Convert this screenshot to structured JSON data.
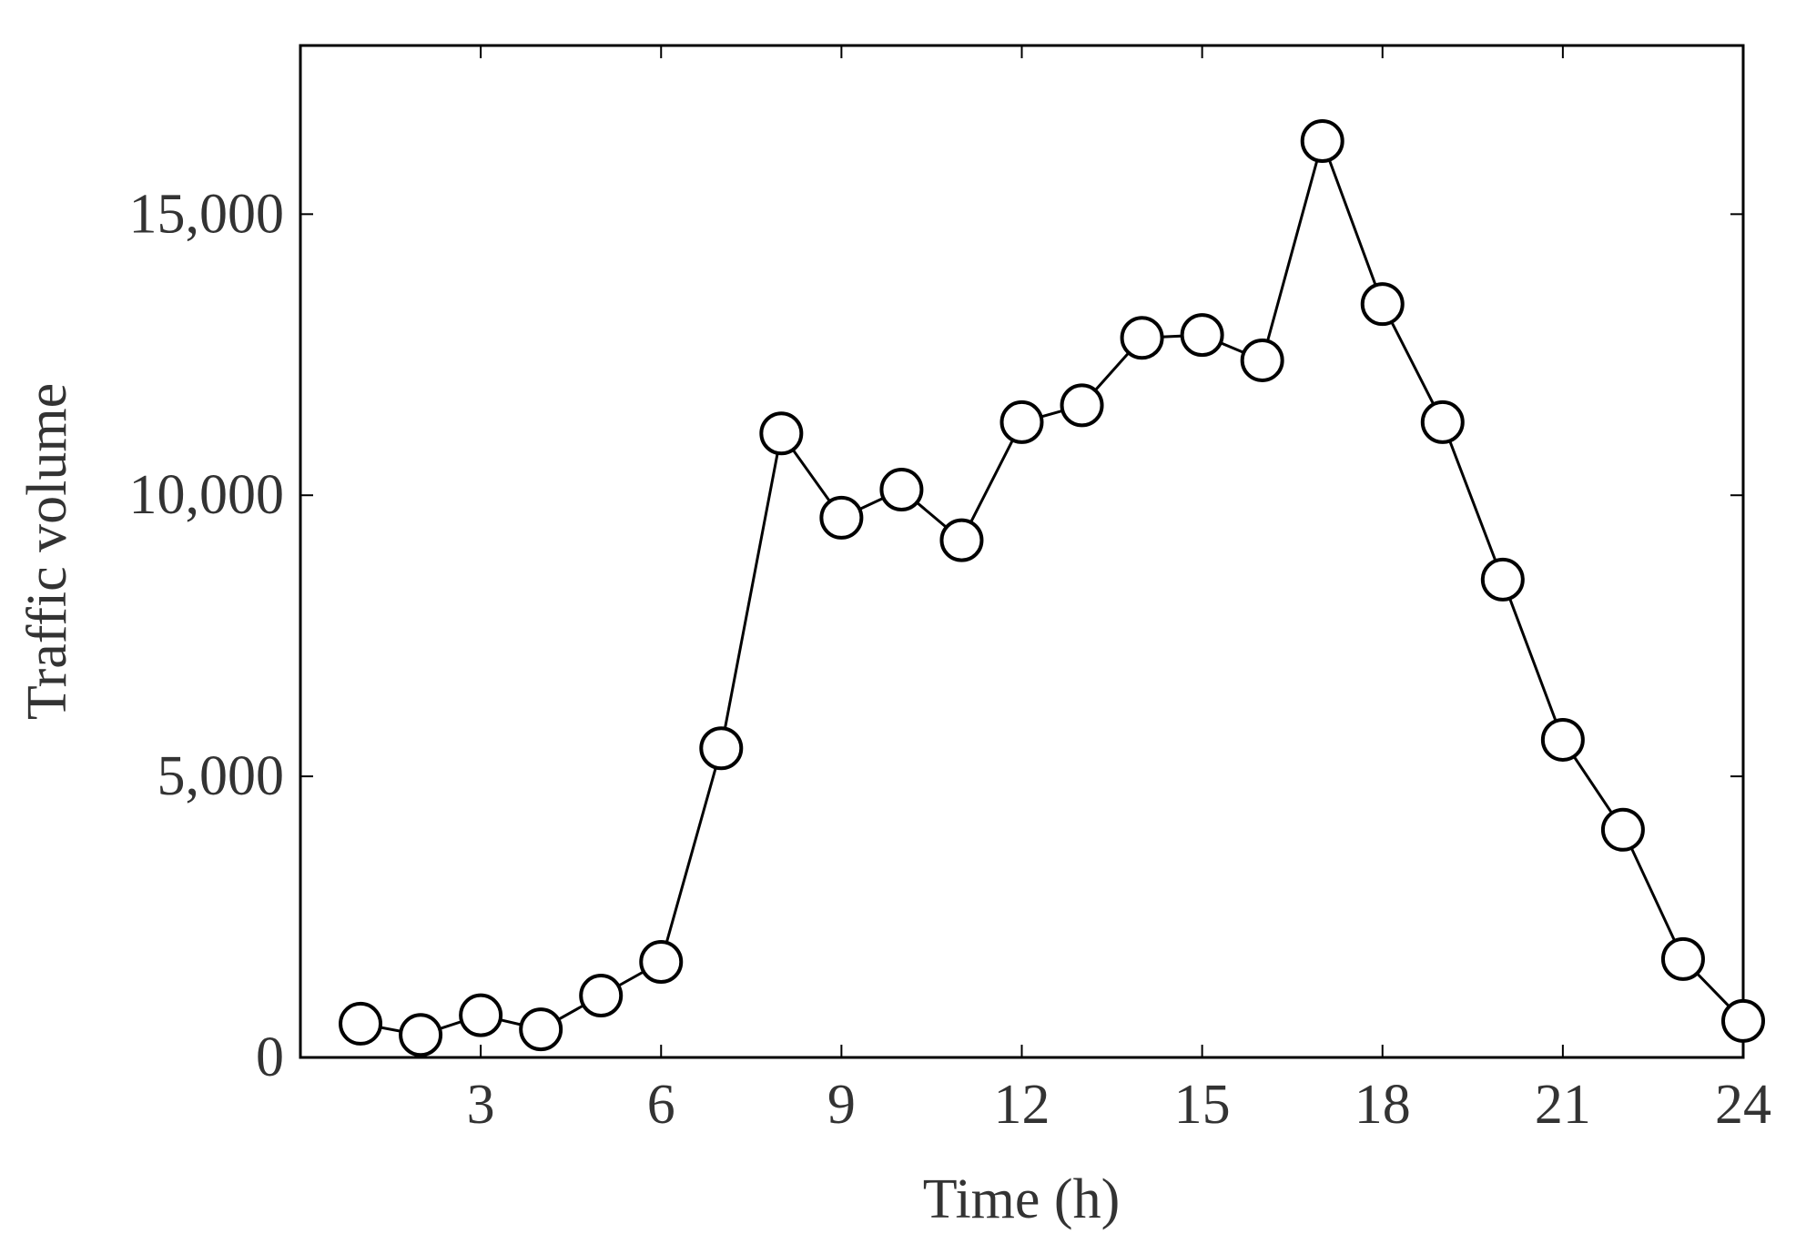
{
  "chart_data": {
    "type": "line",
    "title": "",
    "xlabel": "Time (h)",
    "ylabel": "Traffic volume",
    "xlim": [
      0,
      24
    ],
    "ylim": [
      0,
      18000
    ],
    "x_ticks": [
      {
        "value": 3,
        "label": "3"
      },
      {
        "value": 6,
        "label": "6"
      },
      {
        "value": 9,
        "label": "9"
      },
      {
        "value": 12,
        "label": "12"
      },
      {
        "value": 15,
        "label": "15"
      },
      {
        "value": 18,
        "label": "18"
      },
      {
        "value": 21,
        "label": "21"
      },
      {
        "value": 24,
        "label": "24"
      }
    ],
    "y_ticks": [
      {
        "value": 0,
        "label": "0"
      },
      {
        "value": 5000,
        "label": "5,000"
      },
      {
        "value": 10000,
        "label": "10,000"
      },
      {
        "value": 15000,
        "label": "15,000"
      }
    ],
    "grid": false,
    "legend": false,
    "marker": "open-circle",
    "line_color": "#000000",
    "marker_fill": "#ffffff",
    "text_color": "#333333",
    "series": [
      {
        "x": [
          1,
          2,
          3,
          4,
          5,
          6,
          7,
          8,
          9,
          10,
          11,
          12,
          13,
          14,
          15,
          16,
          17,
          18,
          19,
          20,
          21,
          22,
          23,
          24
        ],
        "values": [
          600,
          400,
          750,
          500,
          1100,
          1700,
          5500,
          11100,
          9600,
          10100,
          9200,
          11300,
          11600,
          12800,
          12850,
          12400,
          16300,
          13400,
          11300,
          8500,
          5650,
          4050,
          1750,
          650
        ]
      }
    ]
  }
}
